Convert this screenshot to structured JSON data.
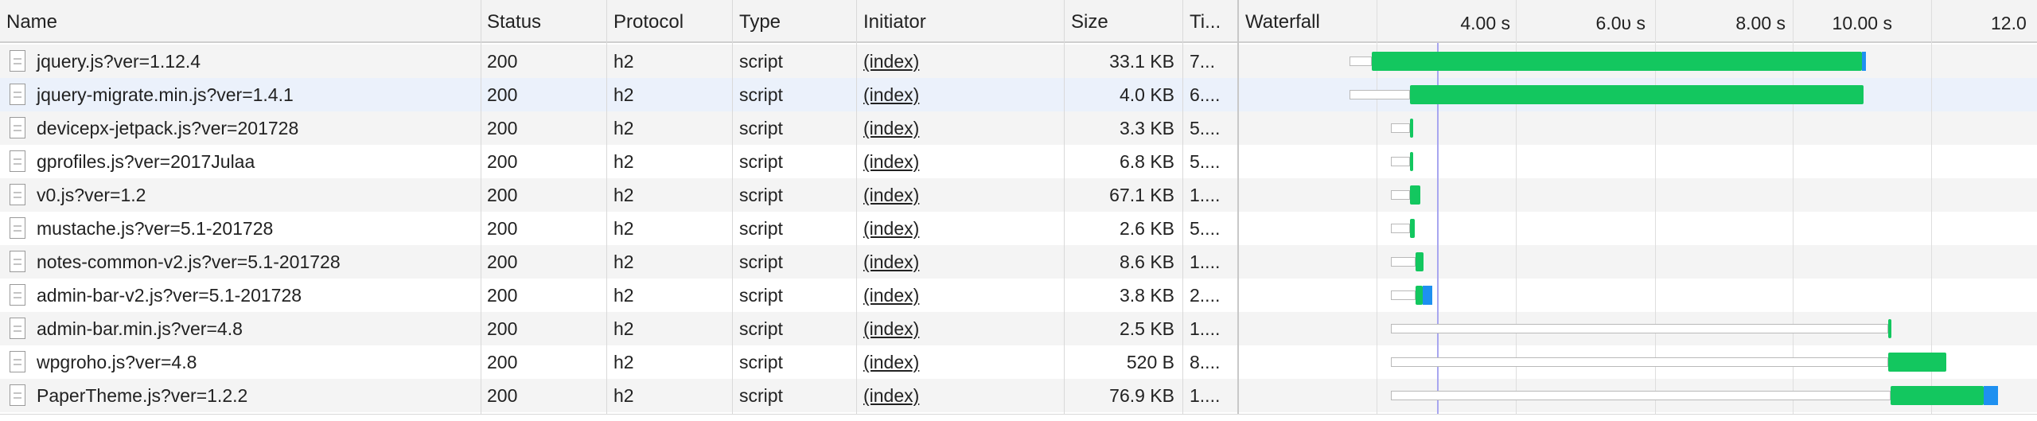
{
  "columns": {
    "name": "Name",
    "status": "Status",
    "protocol": "Protocol",
    "type": "Type",
    "initiator": "Initiator",
    "size": "Size",
    "time": "Ti...",
    "waterfall": "Waterfall"
  },
  "timeline_ticks": [
    "4.00 s",
    "6.0υ s",
    "8.00 s",
    "10.00 s",
    "12.0"
  ],
  "colors": {
    "header_bg": "#f3f3f3",
    "row_alt_bg": "#f4f4f4",
    "selected_row_bg": "#ebf1fb",
    "content_download": "#13c75f",
    "receiving": "#1e90f0",
    "load_marker": "#a8a6f0"
  },
  "rows": [
    {
      "name": "jquery.js?ver=1.12.4",
      "status": "200",
      "protocol": "h2",
      "type": "script",
      "initiator": "(index)",
      "size": "33.1 KB",
      "time": "7..."
    },
    {
      "name": "jquery-migrate.min.js?ver=1.4.1",
      "status": "200",
      "protocol": "h2",
      "type": "script",
      "initiator": "(index)",
      "size": "4.0 KB",
      "time": "6...."
    },
    {
      "name": "devicepx-jetpack.js?ver=201728",
      "status": "200",
      "protocol": "h2",
      "type": "script",
      "initiator": "(index)",
      "size": "3.3 KB",
      "time": "5...."
    },
    {
      "name": "gprofiles.js?ver=2017Julaa",
      "status": "200",
      "protocol": "h2",
      "type": "script",
      "initiator": "(index)",
      "size": "6.8 KB",
      "time": "5...."
    },
    {
      "name": "v0.js?ver=1.2",
      "status": "200",
      "protocol": "h2",
      "type": "script",
      "initiator": "(index)",
      "size": "67.1 KB",
      "time": "1...."
    },
    {
      "name": "mustache.js?ver=5.1-201728",
      "status": "200",
      "protocol": "h2",
      "type": "script",
      "initiator": "(index)",
      "size": "2.6 KB",
      "time": "5...."
    },
    {
      "name": "notes-common-v2.js?ver=5.1-201728",
      "status": "200",
      "protocol": "h2",
      "type": "script",
      "initiator": "(index)",
      "size": "8.6 KB",
      "time": "1...."
    },
    {
      "name": "admin-bar-v2.js?ver=5.1-201728",
      "status": "200",
      "protocol": "h2",
      "type": "script",
      "initiator": "(index)",
      "size": "3.8 KB",
      "time": "2...."
    },
    {
      "name": "admin-bar.min.js?ver=4.8",
      "status": "200",
      "protocol": "h2",
      "type": "script",
      "initiator": "(index)",
      "size": "2.5 KB",
      "time": "1...."
    },
    {
      "name": "wpgroho.js?ver=4.8",
      "status": "200",
      "protocol": "h2",
      "type": "script",
      "initiator": "(index)",
      "size": "520 B",
      "time": "8...."
    },
    {
      "name": "PaperTheme.js?ver=1.2.2",
      "status": "200",
      "protocol": "h2",
      "type": "script",
      "initiator": "(index)",
      "size": "76.9 KB",
      "time": "1...."
    }
  ]
}
